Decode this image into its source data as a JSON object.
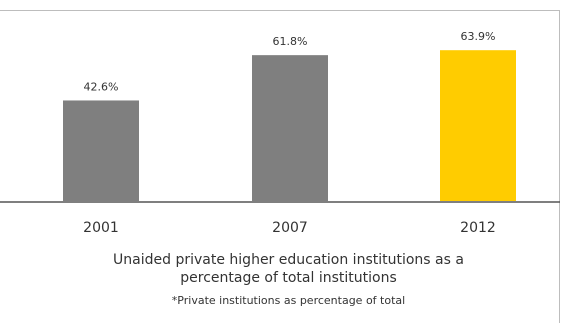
{
  "chart_data": {
    "type": "bar",
    "title": "",
    "categories": [
      "2001",
      "2007",
      "2012"
    ],
    "values": [
      42.6,
      61.8,
      63.9
    ],
    "value_labels": [
      "42.6%",
      "61.8%",
      "63.9%"
    ],
    "unit": "%",
    "ylim": [
      0,
      70
    ],
    "grid": false,
    "legend": "none",
    "bar_colors": [
      "#7f7f7f",
      "#7f7f7f",
      "#ffcc00"
    ],
    "caption": {
      "line1": "Unaided private higher education institutions as a",
      "line2": "percentage of total institutions"
    },
    "footnote": "*Private institutions as percentage of total"
  },
  "colors": {
    "bar_default": "#7f7f7f",
    "bar_highlight": "#ffcc00",
    "axis": "#555555",
    "text": "#333333"
  }
}
